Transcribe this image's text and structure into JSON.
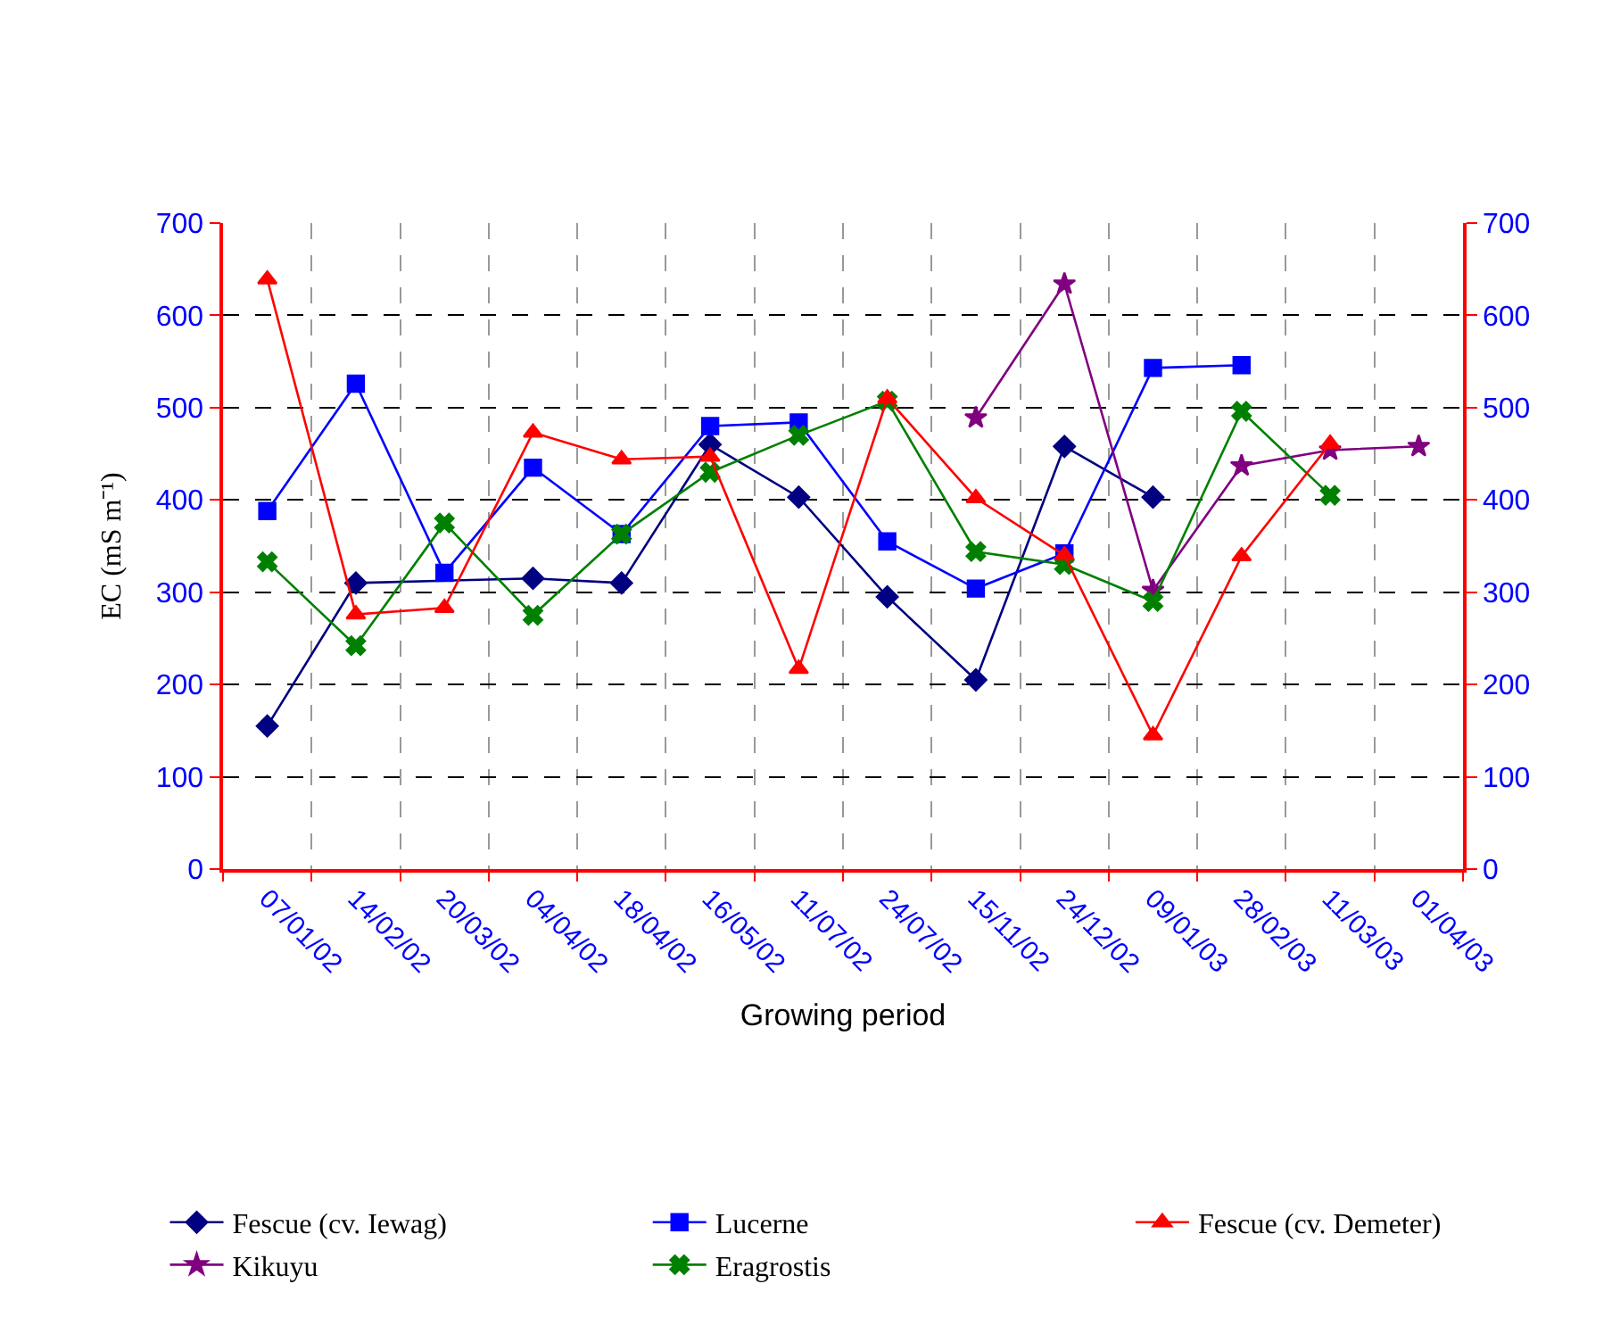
{
  "chart_data": {
    "type": "line",
    "xlabel": "Growing period",
    "ylabel": "EC (mS m⁻¹)",
    "categories": [
      "07/01/02",
      "14/02/02",
      "20/03/02",
      "04/04/02",
      "18/04/02",
      "16/05/02",
      "11/07/02",
      "24/07/02",
      "15/11/02",
      "24/12/02",
      "09/01/03",
      "28/02/03",
      "11/03/03",
      "01/04/03"
    ],
    "ylim": [
      0,
      700
    ],
    "yticks": [
      0,
      100,
      200,
      300,
      400,
      500,
      600,
      700
    ],
    "y2lim": [
      0,
      700
    ],
    "y2ticks": [
      0,
      100,
      200,
      300,
      400,
      500,
      600,
      700
    ],
    "grid": true,
    "legend": "bottom",
    "line_style": "solid",
    "series": [
      {
        "name": "Fescue (cv. Iewag)",
        "color": "#000080",
        "marker": "diamond",
        "values": [
          155,
          310,
          null,
          315,
          310,
          460,
          403,
          295,
          205,
          458,
          403,
          null,
          null,
          null
        ]
      },
      {
        "name": "Lucerne",
        "color": "#0000ff",
        "marker": "square",
        "values": [
          388,
          526,
          321,
          435,
          363,
          480,
          484,
          355,
          304,
          342,
          543,
          546,
          null,
          null
        ]
      },
      {
        "name": "Fescue (cv. Demeter)",
        "color": "#ff0000",
        "marker": "triangle",
        "axis": "y2",
        "values": [
          639,
          276,
          283,
          473,
          444,
          447,
          217,
          510,
          402,
          340,
          145,
          339,
          461,
          null
        ]
      },
      {
        "name": "Kikuyu",
        "color": "#800080",
        "marker": "star",
        "values": [
          null,
          null,
          null,
          null,
          null,
          null,
          null,
          null,
          489,
          634,
          302,
          437,
          454,
          458
        ]
      },
      {
        "name": "Eragrostis",
        "color": "#008000",
        "marker": "cross",
        "values": [
          333,
          242,
          375,
          275,
          363,
          430,
          470,
          507,
          344,
          330,
          290,
          496,
          405,
          null
        ]
      }
    ]
  }
}
